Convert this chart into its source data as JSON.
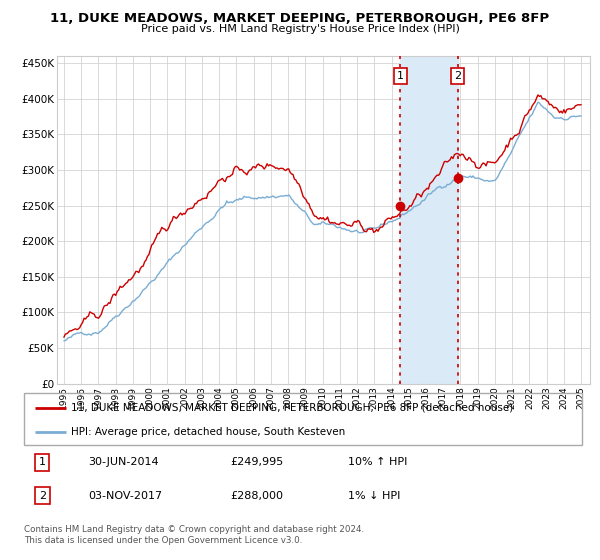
{
  "title": "11, DUKE MEADOWS, MARKET DEEPING, PETERBOROUGH, PE6 8FP",
  "subtitle": "Price paid vs. HM Land Registry's House Price Index (HPI)",
  "legend_line1": "11, DUKE MEADOWS, MARKET DEEPING, PETERBOROUGH, PE6 8FP (detached house)",
  "legend_line2": "HPI: Average price, detached house, South Kesteven",
  "table_row1": [
    "1",
    "30-JUN-2014",
    "£249,995",
    "10% ↑ HPI"
  ],
  "table_row2": [
    "2",
    "03-NOV-2017",
    "£288,000",
    "1% ↓ HPI"
  ],
  "footer": "Contains HM Land Registry data © Crown copyright and database right 2024.\nThis data is licensed under the Open Government Licence v3.0.",
  "marker1_x": 2014.5,
  "marker2_x": 2017.84,
  "marker1_y": 249995,
  "marker2_y": 288000,
  "ylim": [
    0,
    460000
  ],
  "xlim_start": 1994.6,
  "xlim_end": 2025.5,
  "hpi_color": "#7aadd4",
  "price_color": "#cc0000",
  "shaded_color": "#daeaf7",
  "marker_color": "#cc0000",
  "grid_color": "#cccccc",
  "background_color": "#ffffff"
}
